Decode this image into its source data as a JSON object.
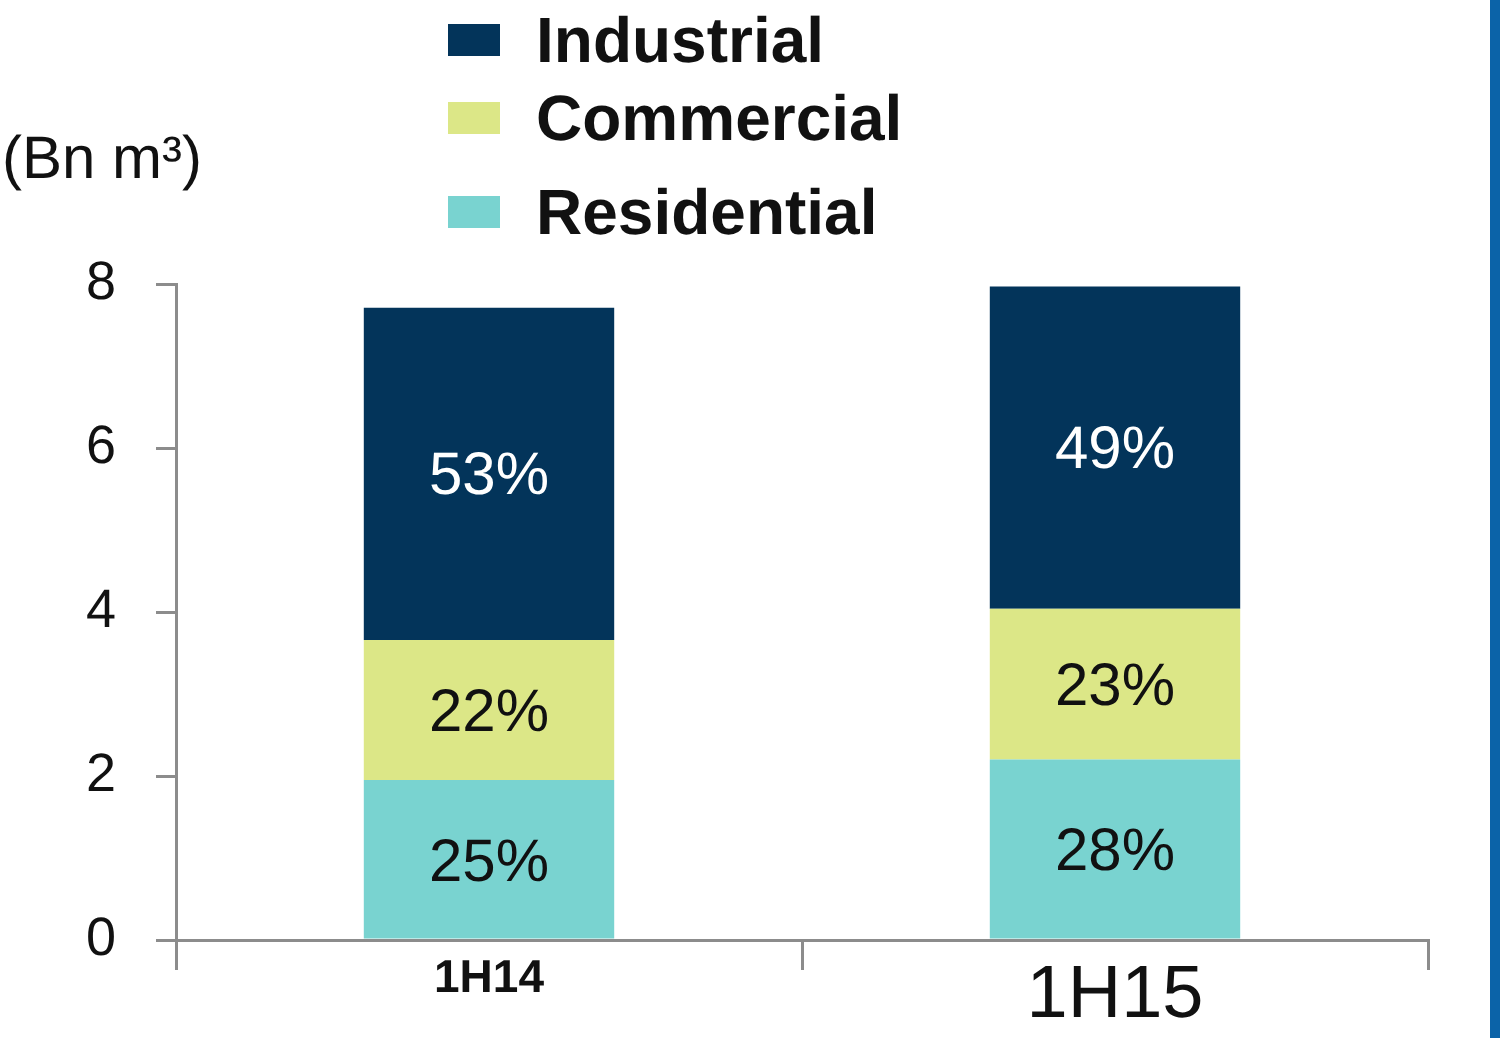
{
  "chart_data": {
    "type": "bar",
    "stacked": true,
    "ylabel": "(Bn m³)",
    "categories": [
      "1H14",
      "1H15"
    ],
    "series": [
      {
        "name": "Residential",
        "color": "#79d3d0",
        "values": [
          1.95,
          2.2
        ]
      },
      {
        "name": "Commercial",
        "color": "#dce787",
        "values": [
          1.71,
          1.84
        ]
      },
      {
        "name": "Industrial",
        "color": "#03345a",
        "values": [
          4.05,
          3.93
        ]
      }
    ],
    "annotations": [
      {
        "text": "25%",
        "x": "1H14",
        "y": 1.95
      },
      {
        "text": "22%",
        "x": "1H14",
        "y": 3.66
      },
      {
        "text": "53%",
        "x": "1H14",
        "y": 7.71
      },
      {
        "text": "28%",
        "x": "1H15",
        "y": 2.2
      },
      {
        "text": "23%",
        "x": "1H15",
        "y": 4.04
      },
      {
        "text": "49%",
        "x": "1H15",
        "y": 7.97
      }
    ],
    "ylim": [
      0,
      8
    ],
    "yticks": [
      0,
      2,
      4,
      6,
      8
    ],
    "grid": false,
    "legend": "top"
  }
}
